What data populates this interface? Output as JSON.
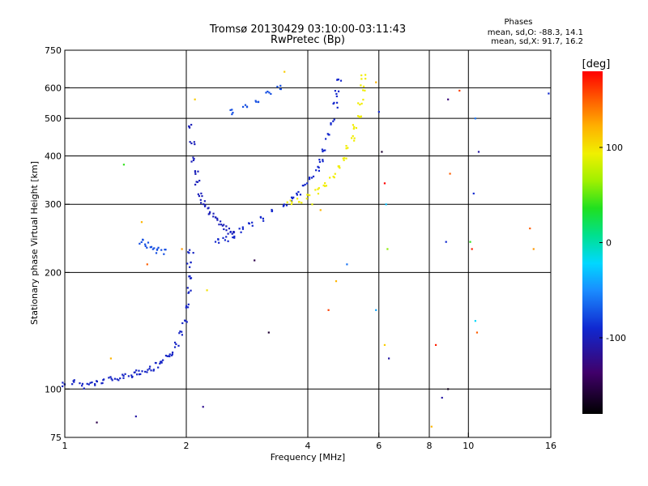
{
  "chart_data": {
    "type": "scatter",
    "title": "Tromsø 20130429 03:10:00-03:11:43",
    "subtitle": "RwPretec (Bp)",
    "xlabel": "Frequency [MHz]",
    "ylabel": "Stationary phase Virtual Height [km]",
    "x_scale": "log",
    "y_scale": "log",
    "xlim": [
      1,
      16
    ],
    "ylim": [
      75,
      750
    ],
    "x_ticks": [
      1,
      2,
      4,
      6,
      8,
      10,
      16
    ],
    "y_ticks": [
      75,
      100,
      200,
      300,
      400,
      500,
      600,
      750
    ],
    "x_gridlines": [
      2,
      4,
      6,
      8,
      10
    ],
    "y_gridlines": [
      100,
      200,
      300,
      400,
      500,
      600
    ],
    "stats": {
      "header": "Phases",
      "line_o": "mean, sd,O: -88.3, 14.1",
      "line_x": "mean, sd,X:  91.7, 16.2"
    },
    "colorbar": {
      "label": "[deg]",
      "range": [
        -180,
        180
      ],
      "ticks": [
        100,
        0,
        -100
      ],
      "tick_labels": [
        "100",
        "0",
        "-100"
      ]
    },
    "series": [
      {
        "id": "o_low",
        "phase": -95,
        "points": [
          [
            1.0,
            103
          ],
          [
            1.05,
            104
          ],
          [
            1.1,
            102
          ],
          [
            1.15,
            103
          ],
          [
            1.2,
            104
          ],
          [
            1.25,
            105
          ],
          [
            1.3,
            106
          ],
          [
            1.35,
            106
          ],
          [
            1.4,
            108
          ],
          [
            1.45,
            109
          ],
          [
            1.5,
            110
          ],
          [
            1.55,
            111
          ],
          [
            1.6,
            112
          ],
          [
            1.65,
            113
          ],
          [
            1.7,
            115
          ],
          [
            1.75,
            117
          ],
          [
            1.8,
            120
          ],
          [
            1.85,
            124
          ],
          [
            1.9,
            130
          ],
          [
            1.95,
            140
          ],
          [
            1.98,
            150
          ],
          [
            2.0,
            165
          ],
          [
            2.02,
            180
          ],
          [
            2.03,
            195
          ],
          [
            2.04,
            210
          ],
          [
            2.05,
            225
          ]
        ]
      },
      {
        "id": "o_cusp_branch",
        "phase": -100,
        "points": [
          [
            2.05,
            480
          ],
          [
            2.07,
            430
          ],
          [
            2.09,
            390
          ],
          [
            2.11,
            360
          ],
          [
            2.13,
            340
          ],
          [
            2.16,
            320
          ],
          [
            2.2,
            305
          ],
          [
            2.24,
            295
          ],
          [
            2.3,
            285
          ],
          [
            2.36,
            278
          ],
          [
            2.42,
            270
          ],
          [
            2.48,
            262
          ],
          [
            2.55,
            256
          ],
          [
            2.62,
            252
          ]
        ]
      },
      {
        "id": "o_f2",
        "phase": -92,
        "points": [
          [
            2.4,
            240
          ],
          [
            2.5,
            244
          ],
          [
            2.6,
            250
          ],
          [
            2.75,
            258
          ],
          [
            2.9,
            266
          ],
          [
            3.1,
            276
          ],
          [
            3.3,
            287
          ],
          [
            3.5,
            300
          ],
          [
            3.65,
            310
          ],
          [
            3.8,
            320
          ],
          [
            3.95,
            335
          ],
          [
            4.1,
            352
          ],
          [
            4.2,
            370
          ],
          [
            4.3,
            390
          ],
          [
            4.4,
            415
          ],
          [
            4.5,
            450
          ],
          [
            4.6,
            490
          ],
          [
            4.7,
            540
          ],
          [
            4.75,
            580
          ],
          [
            4.8,
            630
          ]
        ]
      },
      {
        "id": "x_f2",
        "phase": 95,
        "points": [
          [
            3.6,
            302
          ],
          [
            3.8,
            307
          ],
          [
            4.0,
            315
          ],
          [
            4.2,
            325
          ],
          [
            4.4,
            338
          ],
          [
            4.6,
            355
          ],
          [
            4.8,
            372
          ],
          [
            4.95,
            390
          ],
          [
            5.05,
            420
          ],
          [
            5.15,
            445
          ],
          [
            5.25,
            475
          ],
          [
            5.35,
            510
          ],
          [
            5.4,
            550
          ],
          [
            5.45,
            600
          ],
          [
            5.5,
            640
          ]
        ]
      },
      {
        "id": "o_sporadic",
        "phase": -75,
        "points": [
          [
            1.55,
            240
          ],
          [
            1.6,
            235
          ],
          [
            1.65,
            230
          ],
          [
            1.7,
            228
          ],
          [
            1.75,
            226
          ],
          [
            2.6,
            520
          ],
          [
            2.8,
            540
          ],
          [
            3.0,
            560
          ],
          [
            3.2,
            580
          ],
          [
            3.4,
            600
          ]
        ]
      },
      {
        "id": "scattered",
        "phase_mixed": true,
        "points": [
          [
            1.4,
            380,
            40
          ],
          [
            1.55,
            270,
            120
          ],
          [
            1.6,
            210,
            150
          ],
          [
            1.3,
            120,
            120
          ],
          [
            1.95,
            230,
            130
          ],
          [
            2.1,
            560,
            110
          ],
          [
            2.25,
            180,
            100
          ],
          [
            2.2,
            90,
            -120
          ],
          [
            1.2,
            82,
            -150
          ],
          [
            1.5,
            85,
            -110
          ],
          [
            2.95,
            215,
            -150
          ],
          [
            3.2,
            140,
            -160
          ],
          [
            3.5,
            660,
            110
          ],
          [
            4.1,
            300,
            90
          ],
          [
            4.3,
            290,
            120
          ],
          [
            5.9,
            620,
            120
          ],
          [
            6.0,
            520,
            -90
          ],
          [
            6.1,
            410,
            -160
          ],
          [
            6.2,
            340,
            180
          ],
          [
            6.25,
            300,
            -30
          ],
          [
            6.3,
            230,
            60
          ],
          [
            6.35,
            120,
            -110
          ],
          [
            6.2,
            130,
            110
          ],
          [
            5.9,
            160,
            -40
          ],
          [
            8.1,
            80,
            120
          ],
          [
            8.3,
            130,
            170
          ],
          [
            8.6,
            95,
            -110
          ],
          [
            8.9,
            100,
            -170
          ],
          [
            9.5,
            590,
            160
          ],
          [
            8.9,
            560,
            -130
          ],
          [
            10.4,
            500,
            -60
          ],
          [
            10.6,
            410,
            -110
          ],
          [
            10.3,
            320,
            -90
          ],
          [
            10.1,
            240,
            40
          ],
          [
            10.4,
            150,
            -20
          ],
          [
            10.5,
            140,
            150
          ],
          [
            10.2,
            230,
            170
          ],
          [
            14.2,
            260,
            150
          ],
          [
            14.5,
            230,
            130
          ],
          [
            15.8,
            580,
            -90
          ],
          [
            9.0,
            360,
            150
          ],
          [
            8.8,
            240,
            -90
          ],
          [
            4.5,
            160,
            160
          ],
          [
            4.7,
            190,
            120
          ],
          [
            5.0,
            210,
            -60
          ]
        ]
      }
    ],
    "grid": true
  }
}
